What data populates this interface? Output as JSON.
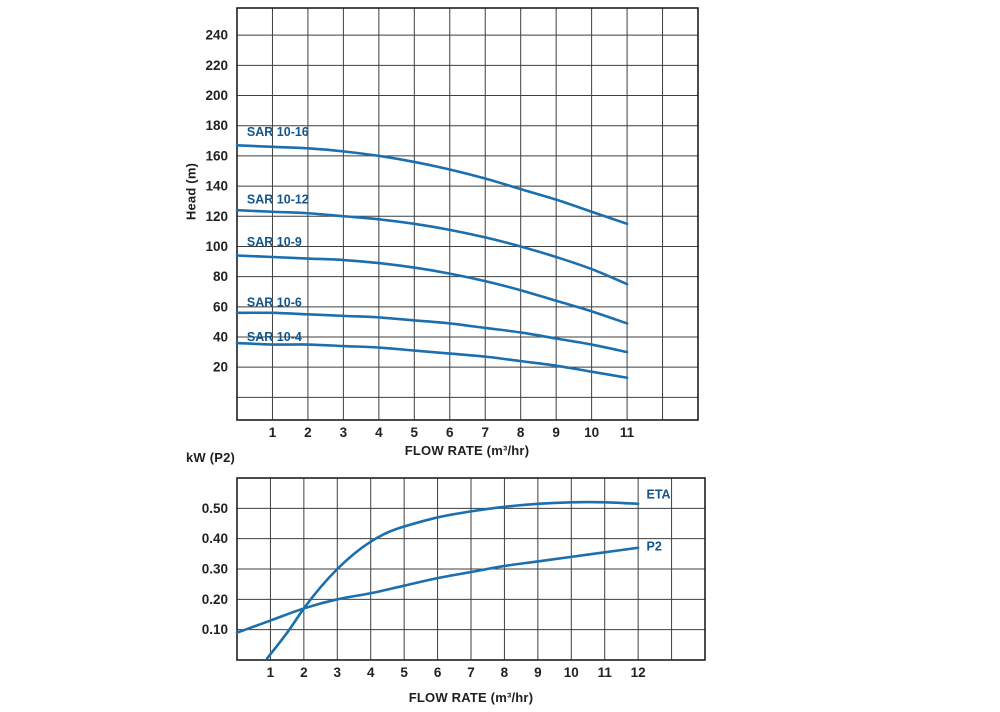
{
  "page": {
    "background": "#ffffff"
  },
  "colors": {
    "curve": "#1b6fae",
    "curve_label": "#11568c",
    "grid": "#3f3f3f",
    "frame": "#1f1f1f",
    "text": "#1f1f1f"
  },
  "chart_data": [
    {
      "type": "line",
      "title": "",
      "xlabel": "FLOW RATE (m³/hr)",
      "ylabel": "Head (m)",
      "xlim": [
        0,
        13
      ],
      "ylim": [
        -15,
        258
      ],
      "xgrid_step": 1,
      "ygrid_step": 20,
      "grid": true,
      "xticks": [
        1,
        2,
        3,
        4,
        5,
        6,
        7,
        8,
        9,
        10,
        11
      ],
      "yticks": [
        20,
        40,
        60,
        80,
        100,
        120,
        140,
        160,
        180,
        200,
        220,
        240
      ],
      "series": [
        {
          "name": "SAR 10-16",
          "x": [
            0,
            1,
            2,
            3,
            4,
            5,
            6,
            7,
            8,
            9,
            10,
            11
          ],
          "y": [
            167,
            166,
            165,
            163,
            160,
            156,
            151,
            145,
            138,
            131,
            123,
            115
          ],
          "label": {
            "x": 0.28,
            "y": 176
          }
        },
        {
          "name": "SAR 10-12",
          "x": [
            0,
            1,
            2,
            3,
            4,
            5,
            6,
            7,
            8,
            9,
            10,
            11
          ],
          "y": [
            124,
            123,
            122,
            120,
            118,
            115,
            111,
            106,
            100,
            93,
            85,
            75
          ],
          "label": {
            "x": 0.28,
            "y": 131
          }
        },
        {
          "name": "SAR 10-9",
          "x": [
            0,
            1,
            2,
            3,
            4,
            5,
            6,
            7,
            8,
            9,
            10,
            11
          ],
          "y": [
            94,
            93,
            92,
            91,
            89,
            86,
            82,
            77,
            71,
            64,
            57,
            49
          ],
          "label": {
            "x": 0.28,
            "y": 103
          }
        },
        {
          "name": "SAR 10-6",
          "x": [
            0,
            1,
            2,
            3,
            4,
            5,
            6,
            7,
            8,
            9,
            10,
            11
          ],
          "y": [
            56,
            56,
            55,
            54,
            53,
            51,
            49,
            46,
            43,
            39,
            35,
            30
          ],
          "label": {
            "x": 0.28,
            "y": 63
          }
        },
        {
          "name": "SAR 10-4",
          "x": [
            0,
            1,
            2,
            3,
            4,
            5,
            6,
            7,
            8,
            9,
            10,
            11
          ],
          "y": [
            36,
            35,
            35,
            34,
            33,
            31,
            29,
            27,
            24,
            21,
            17,
            13
          ],
          "label": {
            "x": 0.28,
            "y": 40
          }
        }
      ]
    },
    {
      "type": "line",
      "title": "",
      "xlabel": "FLOW RATE (m³/hr)",
      "ylabel": "kW (P2)",
      "xlim": [
        0,
        14
      ],
      "ylim": [
        0,
        0.6
      ],
      "xgrid_step": 1,
      "ygrid_step": 0.1,
      "grid": true,
      "xticks": [
        1,
        2,
        3,
        4,
        5,
        6,
        7,
        8,
        9,
        10,
        11,
        12
      ],
      "yticks": [
        0.1,
        0.2,
        0.3,
        0.4,
        0.5
      ],
      "ytick_labels": [
        "0.10",
        "0.20",
        "0.30",
        "0.40",
        "0.50"
      ],
      "series": [
        {
          "name": "ETA",
          "x": [
            0.9,
            1.5,
            2,
            2.5,
            3,
            3.5,
            4,
            4.5,
            5,
            6,
            7,
            8,
            9,
            10,
            11,
            12
          ],
          "y": [
            0.005,
            0.09,
            0.17,
            0.24,
            0.3,
            0.35,
            0.39,
            0.42,
            0.44,
            0.47,
            0.49,
            0.505,
            0.515,
            0.52,
            0.52,
            0.515
          ],
          "label": {
            "x": 12.25,
            "y": 0.545
          }
        },
        {
          "name": "P2",
          "x": [
            0,
            1,
            2,
            3,
            4,
            5,
            6,
            7,
            8,
            9,
            10,
            11,
            12
          ],
          "y": [
            0.09,
            0.13,
            0.17,
            0.2,
            0.22,
            0.245,
            0.27,
            0.29,
            0.31,
            0.325,
            0.34,
            0.355,
            0.37
          ],
          "label": {
            "x": 12.25,
            "y": 0.375
          }
        }
      ]
    }
  ]
}
